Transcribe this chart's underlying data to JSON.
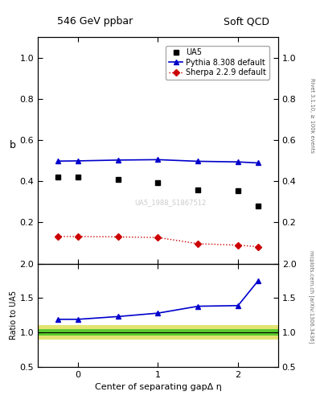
{
  "title_left": "546 GeV ppbar",
  "title_right": "Soft QCD",
  "ylabel_main": "b",
  "ylabel_ratio": "Ratio to UA5",
  "xlabel": "Center of separating gapΔ η",
  "right_label_top": "Rivet 3.1.10, ≥ 100k events",
  "right_label_bot": "mcplots.cern.ch [arXiv:1306.3436]",
  "watermark": "UA5_1988_S1867512",
  "ua5_x": [
    -0.25,
    0.0,
    0.5,
    1.0,
    1.5,
    2.0,
    2.25
  ],
  "ua5_y": [
    0.42,
    0.42,
    0.41,
    0.395,
    0.36,
    0.355,
    0.28
  ],
  "pythia_x": [
    -0.25,
    0.0,
    0.5,
    1.0,
    1.5,
    2.0,
    2.25
  ],
  "pythia_y": [
    0.498,
    0.499,
    0.503,
    0.505,
    0.497,
    0.494,
    0.489
  ],
  "sherpa_x": [
    -0.25,
    0.0,
    0.5,
    1.0,
    1.5,
    2.0,
    2.25
  ],
  "sherpa_y": [
    0.132,
    0.132,
    0.13,
    0.127,
    0.097,
    0.09,
    0.082
  ],
  "ratio_pythia_x": [
    -0.25,
    0.0,
    0.5,
    1.0,
    1.5,
    2.0,
    2.25
  ],
  "ratio_pythia_y": [
    1.19,
    1.19,
    1.23,
    1.28,
    1.38,
    1.39,
    1.75
  ],
  "main_ylim": [
    0,
    1.1
  ],
  "ratio_ylim": [
    0.5,
    2.0
  ],
  "xlim": [
    -0.5,
    2.5
  ],
  "ua5_color": "#000000",
  "pythia_color": "#0000cc",
  "sherpa_color": "#cc0000",
  "band_green": "#00bb00",
  "band_yellow": "#cccc00",
  "main_yticks": [
    0.2,
    0.4,
    0.6,
    0.8,
    1.0
  ],
  "ratio_yticks": [
    0.5,
    1.0,
    1.5,
    2.0
  ],
  "xticks": [
    0,
    1,
    2
  ]
}
